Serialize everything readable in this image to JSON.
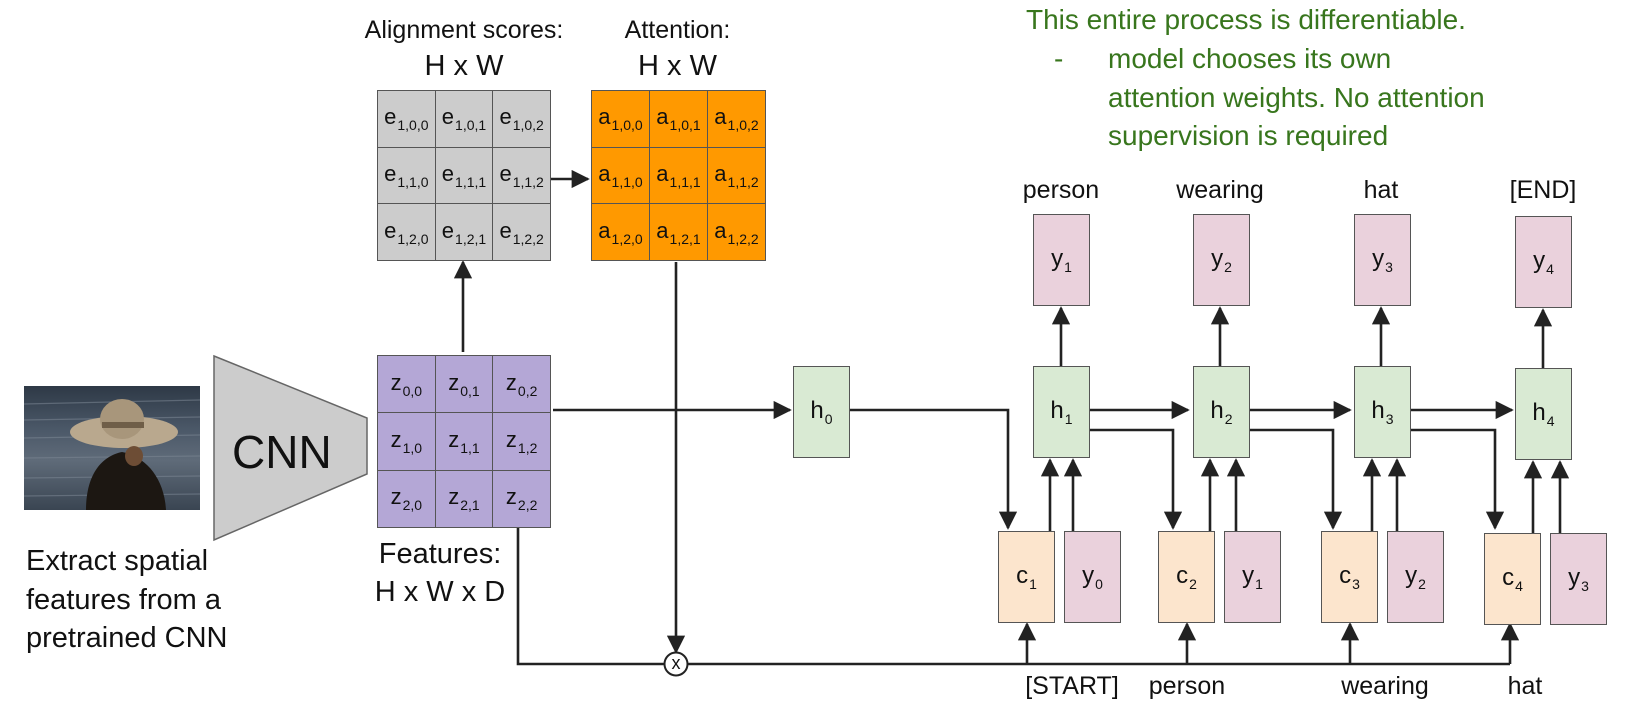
{
  "note": {
    "title": "This entire process is differentiable.",
    "bullet": "-",
    "lines": [
      "model chooses its own",
      "attention weights. No attention",
      "supervision is required"
    ]
  },
  "alignment": {
    "title": "Alignment scores:",
    "dims": "H x W",
    "cells": [
      [
        {
          "base": "e",
          "sub": "1,0,0"
        },
        {
          "base": "e",
          "sub": "1,0,1"
        },
        {
          "base": "e",
          "sub": "1,0,2"
        }
      ],
      [
        {
          "base": "e",
          "sub": "1,1,0"
        },
        {
          "base": "e",
          "sub": "1,1,1"
        },
        {
          "base": "e",
          "sub": "1,1,2"
        }
      ],
      [
        {
          "base": "e",
          "sub": "1,2,0"
        },
        {
          "base": "e",
          "sub": "1,2,1"
        },
        {
          "base": "e",
          "sub": "1,2,2"
        }
      ]
    ]
  },
  "attention": {
    "title": "Attention:",
    "dims": "H x W",
    "cells": [
      [
        {
          "base": "a",
          "sub": "1,0,0"
        },
        {
          "base": "a",
          "sub": "1,0,1"
        },
        {
          "base": "a",
          "sub": "1,0,2"
        }
      ],
      [
        {
          "base": "a",
          "sub": "1,1,0"
        },
        {
          "base": "a",
          "sub": "1,1,1"
        },
        {
          "base": "a",
          "sub": "1,1,2"
        }
      ],
      [
        {
          "base": "a",
          "sub": "1,2,0"
        },
        {
          "base": "a",
          "sub": "1,2,1"
        },
        {
          "base": "a",
          "sub": "1,2,2"
        }
      ]
    ]
  },
  "features": {
    "title": "Features:",
    "dims": "H x W x D",
    "cells": [
      [
        {
          "base": "z",
          "sub": "0,0"
        },
        {
          "base": "z",
          "sub": "0,1"
        },
        {
          "base": "z",
          "sub": "0,2"
        }
      ],
      [
        {
          "base": "z",
          "sub": "1,0"
        },
        {
          "base": "z",
          "sub": "1,1"
        },
        {
          "base": "z",
          "sub": "1,2"
        }
      ],
      [
        {
          "base": "z",
          "sub": "2,0"
        },
        {
          "base": "z",
          "sub": "2,1"
        },
        {
          "base": "z",
          "sub": "2,2"
        }
      ]
    ]
  },
  "cnn": {
    "label": "CNN",
    "caption": [
      "Extract spatial",
      "features from a",
      "pretrained CNN"
    ]
  },
  "multiply_symbol": "x",
  "h0": {
    "base": "h",
    "sub": "0"
  },
  "steps": [
    {
      "output_word": "person",
      "y": {
        "base": "y",
        "sub": "1"
      },
      "h": {
        "base": "h",
        "sub": "1"
      },
      "c": {
        "base": "c",
        "sub": "1"
      },
      "yin": {
        "base": "y",
        "sub": "0"
      },
      "input_word": "[START]"
    },
    {
      "output_word": "wearing",
      "y": {
        "base": "y",
        "sub": "2"
      },
      "h": {
        "base": "h",
        "sub": "2"
      },
      "c": {
        "base": "c",
        "sub": "2"
      },
      "yin": {
        "base": "y",
        "sub": "1"
      },
      "input_word": "person"
    },
    {
      "output_word": "hat",
      "y": {
        "base": "y",
        "sub": "3"
      },
      "h": {
        "base": "h",
        "sub": "3"
      },
      "c": {
        "base": "c",
        "sub": "3"
      },
      "yin": {
        "base": "y",
        "sub": "2"
      },
      "input_word": "wearing"
    },
    {
      "output_word": "[END]",
      "y": {
        "base": "y",
        "sub": "4"
      },
      "h": {
        "base": "h",
        "sub": "4"
      },
      "c": {
        "base": "c",
        "sub": "4"
      },
      "yin": {
        "base": "y",
        "sub": "3"
      },
      "input_word": "hat"
    }
  ],
  "colors": {
    "note_text": "#38761d",
    "alignment_fill": "#cccccc",
    "attention_fill": "#ff9900",
    "features_fill": "#b4a7d6",
    "hidden_fill": "#d9ead3",
    "context_fill": "#fce5cd",
    "token_fill": "#ead1dc",
    "cnn_fill": "#cccccc"
  }
}
